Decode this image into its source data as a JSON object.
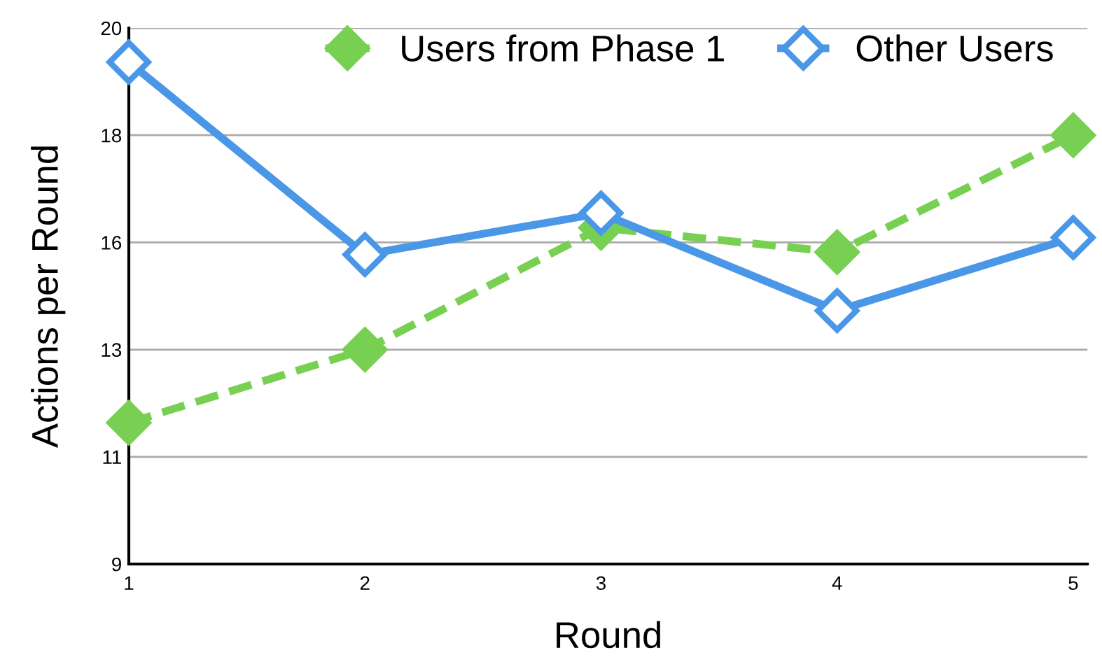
{
  "chart_data": {
    "type": "line",
    "xlabel": "Round",
    "ylabel": "Actions per Round",
    "x": [
      1,
      2,
      3,
      4,
      5
    ],
    "series": [
      {
        "name": "Users from Phase 1",
        "color": "#78d052",
        "values": [
          11.9,
          13.4,
          15.9,
          15.4,
          17.8
        ],
        "line_style": "dashed"
      },
      {
        "name": "Other Users",
        "color": "#4a97e8",
        "values": [
          19.3,
          15.35,
          16.2,
          14.2,
          15.7
        ],
        "line_style": "solid"
      }
    ],
    "xlim": [
      1,
      5.06
    ],
    "xticks": [
      1,
      2,
      3,
      4,
      5
    ],
    "ylim": [
      9,
      20
    ],
    "yticks": [
      9,
      {
        "value": 11.2,
        "label": "11"
      },
      {
        "value": 13.4,
        "label": "13"
      },
      {
        "value": 15.6,
        "label": "16"
      },
      {
        "value": 17.8,
        "label": "18"
      },
      20
    ],
    "grid": "y",
    "legend": "top right",
    "marker": "diamond"
  }
}
